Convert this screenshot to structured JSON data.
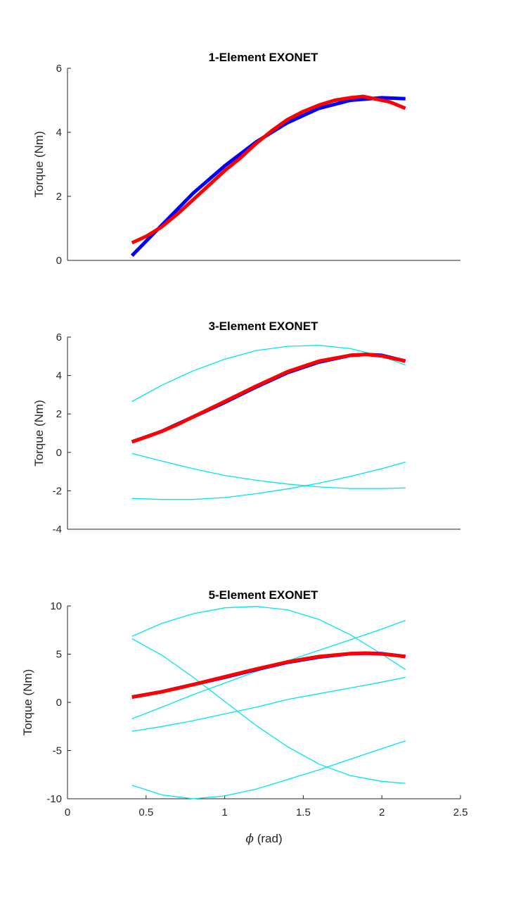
{
  "chart_data": [
    {
      "type": "line",
      "title": "1-Element EXONET",
      "ylabel": "Torque (Nm)",
      "xlabel": "",
      "xlim": [
        0,
        2.5
      ],
      "ylim": [
        0,
        6
      ],
      "yticks": [
        "0",
        "2",
        "4",
        "6"
      ],
      "xtick_labels_shown": false,
      "colors": {
        "model": "#0000ff",
        "measured": "#ff0000",
        "element": "#00e5ee"
      },
      "series": [
        {
          "role": "model",
          "x": [
            0.41,
            0.6,
            0.8,
            1.0,
            1.2,
            1.4,
            1.6,
            1.8,
            2.0,
            2.15
          ],
          "y": [
            0.15,
            1.1,
            2.1,
            2.95,
            3.7,
            4.3,
            4.75,
            5.0,
            5.08,
            5.05
          ]
        },
        {
          "role": "measured",
          "x": [
            0.41,
            0.5,
            0.6,
            0.7,
            0.8,
            0.9,
            1.0,
            1.1,
            1.2,
            1.3,
            1.4,
            1.5,
            1.6,
            1.7,
            1.8,
            1.88,
            1.95,
            2.05,
            2.15
          ],
          "y": [
            0.55,
            0.75,
            1.05,
            1.45,
            1.9,
            2.35,
            2.8,
            3.2,
            3.65,
            4.05,
            4.4,
            4.65,
            4.85,
            5.0,
            5.08,
            5.12,
            5.05,
            4.95,
            4.75
          ]
        }
      ]
    },
    {
      "type": "line",
      "title": "3-Element EXONET",
      "ylabel": "Torque (Nm)",
      "xlabel": "",
      "xlim": [
        0,
        2.5
      ],
      "ylim": [
        -4,
        6
      ],
      "yticks": [
        "-4",
        "-2",
        "0",
        "2",
        "4",
        "6"
      ],
      "xtick_labels_shown": false,
      "series": [
        {
          "role": "element",
          "x": [
            0.41,
            0.6,
            0.8,
            1.0,
            1.2,
            1.4,
            1.6,
            1.8,
            2.0,
            2.15
          ],
          "y": [
            2.65,
            3.5,
            4.25,
            4.85,
            5.3,
            5.52,
            5.57,
            5.4,
            5.0,
            4.55
          ]
        },
        {
          "role": "element",
          "x": [
            0.41,
            0.6,
            0.8,
            1.0,
            1.2,
            1.4,
            1.6,
            1.8,
            2.0,
            2.15
          ],
          "y": [
            -0.05,
            -0.45,
            -0.85,
            -1.2,
            -1.45,
            -1.65,
            -1.8,
            -1.88,
            -1.88,
            -1.85
          ]
        },
        {
          "role": "element",
          "x": [
            0.41,
            0.6,
            0.8,
            1.0,
            1.2,
            1.4,
            1.6,
            1.8,
            2.0,
            2.15
          ],
          "y": [
            -2.4,
            -2.45,
            -2.45,
            -2.35,
            -2.15,
            -1.9,
            -1.6,
            -1.25,
            -0.85,
            -0.5
          ]
        },
        {
          "role": "model",
          "x": [
            0.41,
            0.6,
            0.8,
            1.0,
            1.2,
            1.4,
            1.6,
            1.8,
            1.9,
            2.0,
            2.15
          ],
          "y": [
            0.55,
            1.1,
            1.85,
            2.6,
            3.4,
            4.15,
            4.7,
            5.05,
            5.1,
            5.05,
            4.75
          ]
        },
        {
          "role": "measured",
          "x": [
            0.41,
            0.5,
            0.6,
            0.7,
            0.8,
            0.9,
            1.0,
            1.2,
            1.4,
            1.6,
            1.8,
            1.9,
            2.0,
            2.15
          ],
          "y": [
            0.55,
            0.8,
            1.1,
            1.45,
            1.85,
            2.25,
            2.65,
            3.45,
            4.2,
            4.75,
            5.05,
            5.1,
            5.02,
            4.75
          ]
        }
      ]
    },
    {
      "type": "line",
      "title": "5-Element EXONET",
      "ylabel": "Torque (Nm)",
      "xlabel": "ϕ (rad)",
      "xlim": [
        0,
        2.5
      ],
      "ylim": [
        -10,
        10
      ],
      "yticks": [
        "-10",
        "-5",
        "0",
        "5",
        "10"
      ],
      "xticks": [
        "0",
        "0.5",
        "1",
        "1.5",
        "2",
        "2.5"
      ],
      "xtick_labels_shown": true,
      "series": [
        {
          "role": "element",
          "x": [
            0.41,
            0.6,
            0.8,
            1.0,
            1.2,
            1.4,
            1.6,
            1.8,
            2.0,
            2.15
          ],
          "y": [
            6.85,
            8.2,
            9.2,
            9.8,
            9.95,
            9.6,
            8.6,
            7.0,
            5.0,
            3.4
          ]
        },
        {
          "role": "element",
          "x": [
            0.41,
            0.6,
            0.8,
            1.0,
            1.2,
            1.4,
            1.6,
            1.8,
            2.0,
            2.15
          ],
          "y": [
            6.6,
            4.9,
            2.6,
            0.1,
            -2.4,
            -4.6,
            -6.4,
            -7.6,
            -8.2,
            -8.4
          ]
        },
        {
          "role": "element",
          "x": [
            0.41,
            0.6,
            0.8,
            1.0,
            1.2,
            1.4,
            1.6,
            1.8,
            2.0,
            2.15
          ],
          "y": [
            -1.7,
            -0.5,
            0.8,
            2.0,
            3.2,
            4.3,
            5.4,
            6.5,
            7.6,
            8.5
          ]
        },
        {
          "role": "element",
          "x": [
            0.41,
            0.6,
            0.8,
            1.0,
            1.2,
            1.4,
            1.6,
            1.8,
            2.0,
            2.15
          ],
          "y": [
            -3.0,
            -2.5,
            -1.9,
            -1.2,
            -0.5,
            0.3,
            0.9,
            1.5,
            2.1,
            2.6
          ]
        },
        {
          "role": "element",
          "x": [
            0.41,
            0.6,
            0.8,
            1.0,
            1.2,
            1.4,
            1.6,
            1.8,
            2.0,
            2.15
          ],
          "y": [
            -8.6,
            -9.6,
            -10.0,
            -9.7,
            -9.0,
            -8.0,
            -7.0,
            -5.9,
            -4.8,
            -4.0
          ]
        },
        {
          "role": "model",
          "x": [
            0.41,
            0.6,
            0.8,
            1.0,
            1.2,
            1.4,
            1.6,
            1.8,
            1.9,
            2.0,
            2.15
          ],
          "y": [
            0.55,
            1.1,
            1.85,
            2.6,
            3.4,
            4.15,
            4.7,
            5.05,
            5.1,
            5.05,
            4.75
          ]
        },
        {
          "role": "measured",
          "x": [
            0.41,
            0.5,
            0.6,
            0.7,
            0.8,
            0.9,
            1.0,
            1.2,
            1.4,
            1.6,
            1.8,
            1.9,
            2.0,
            2.15
          ],
          "y": [
            0.55,
            0.8,
            1.1,
            1.45,
            1.85,
            2.25,
            2.65,
            3.45,
            4.2,
            4.75,
            5.05,
            5.1,
            5.02,
            4.75
          ]
        }
      ]
    }
  ]
}
